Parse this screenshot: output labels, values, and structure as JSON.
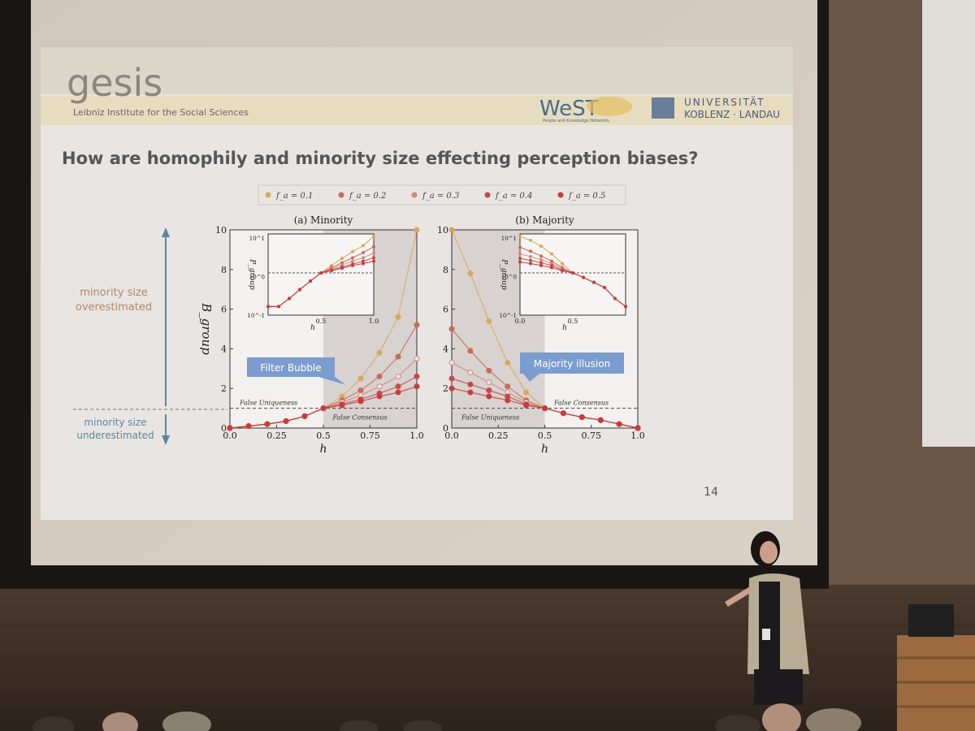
{
  "slide": {
    "logo_left": "gesis",
    "institute": "Leibniz Institute for the Social Sciences",
    "logo_west": "WeST",
    "west_sub": "People and Knowledge Networks",
    "univ_line1": "UNIVERSITÄT",
    "univ_line2": "KOBLENZ · LANDAU",
    "title": "How are homophily and minority size effecting perception biases?",
    "page_number": "14",
    "annot_over_1": "minority size",
    "annot_over_2": "overestimated",
    "annot_under_1": "minority size",
    "annot_under_2": "underestimated",
    "callout_left": "Filter Bubble",
    "callout_right": "Majority illusion",
    "colors": {
      "slide_bg": "#e7e4e1",
      "header_band": "#dcd3b8",
      "callout": "#7b9ccf",
      "arrow": "#5c86a0",
      "shade": "#d8d2d0"
    }
  },
  "legend": [
    {
      "label": "f_a = 0.1",
      "color": "#d9a85e"
    },
    {
      "label": "f_a = 0.2",
      "color": "#c96b5a"
    },
    {
      "label": "f_a = 0.3",
      "color": "#d08b80"
    },
    {
      "label": "f_a = 0.4",
      "color": "#c24b48"
    },
    {
      "label": "f_a = 0.5",
      "color": "#c83c3a"
    }
  ],
  "chart_data": [
    {
      "type": "line",
      "title": "(a) Minority",
      "xlabel": "h",
      "ylabel": "B_group",
      "xlim": [
        0,
        1
      ],
      "ylim": [
        0,
        10
      ],
      "xticks": [
        "0.0",
        "0.25",
        "0.5",
        "0.75",
        "1.0"
      ],
      "yticks": [
        "0",
        "2",
        "4",
        "6",
        "8",
        "10"
      ],
      "ref_line_label_above": "False Uniqueness",
      "ref_line_label_below": "False Consensus",
      "x": [
        0.0,
        0.1,
        0.2,
        0.3,
        0.4,
        0.5,
        0.6,
        0.7,
        0.8,
        0.9,
        1.0
      ],
      "series": [
        {
          "name": "f_a = 0.1",
          "values": [
            0.0,
            0.1,
            0.2,
            0.35,
            0.6,
            1.0,
            1.6,
            2.5,
            3.8,
            5.6,
            10.0
          ]
        },
        {
          "name": "f_a = 0.2",
          "values": [
            0.0,
            0.1,
            0.2,
            0.35,
            0.6,
            1.0,
            1.4,
            1.9,
            2.6,
            3.6,
            5.2
          ]
        },
        {
          "name": "f_a = 0.3",
          "values": [
            0.0,
            0.1,
            0.2,
            0.35,
            0.6,
            1.0,
            1.3,
            1.65,
            2.1,
            2.6,
            3.5
          ]
        },
        {
          "name": "f_a = 0.4",
          "values": [
            0.0,
            0.1,
            0.2,
            0.35,
            0.6,
            1.0,
            1.2,
            1.45,
            1.75,
            2.1,
            2.6
          ]
        },
        {
          "name": "f_a = 0.5",
          "values": [
            0.0,
            0.1,
            0.2,
            0.35,
            0.6,
            1.0,
            1.15,
            1.35,
            1.6,
            1.8,
            2.1
          ]
        }
      ],
      "inset": {
        "ylabel": "P_group",
        "xlabel": "h",
        "yticks": [
          "10^-1",
          "10^0",
          "10^1"
        ],
        "xticks": [
          "0.5",
          "1.0"
        ]
      }
    },
    {
      "type": "line",
      "title": "(b) Majority",
      "xlabel": "h",
      "ylim": [
        0,
        10
      ],
      "xlim": [
        0,
        1
      ],
      "xticks": [
        "0.0",
        "0.25",
        "0.5",
        "0.75",
        "1.0"
      ],
      "yticks": [
        "0",
        "2",
        "4",
        "6",
        "8",
        "10"
      ],
      "ref_line_label_above": "False Consensus",
      "ref_line_label_below": "False Uniqueness",
      "x": [
        0.0,
        0.1,
        0.2,
        0.3,
        0.4,
        0.5,
        0.6,
        0.7,
        0.8,
        0.9,
        1.0
      ],
      "series": [
        {
          "name": "f_a = 0.1",
          "values": [
            10.0,
            7.8,
            5.4,
            3.3,
            1.8,
            1.0,
            0.75,
            0.55,
            0.4,
            0.2,
            0.0
          ]
        },
        {
          "name": "f_a = 0.2",
          "values": [
            5.0,
            3.9,
            2.9,
            2.1,
            1.4,
            1.0,
            0.75,
            0.55,
            0.4,
            0.2,
            0.0
          ]
        },
        {
          "name": "f_a = 0.3",
          "values": [
            3.3,
            2.8,
            2.3,
            1.8,
            1.3,
            1.0,
            0.75,
            0.55,
            0.4,
            0.2,
            0.0
          ]
        },
        {
          "name": "f_a = 0.4",
          "values": [
            2.5,
            2.2,
            1.9,
            1.6,
            1.2,
            1.0,
            0.75,
            0.55,
            0.4,
            0.2,
            0.0
          ]
        },
        {
          "name": "f_a = 0.5",
          "values": [
            2.0,
            1.8,
            1.6,
            1.4,
            1.15,
            1.0,
            0.75,
            0.55,
            0.4,
            0.2,
            0.0
          ]
        }
      ],
      "inset": {
        "ylabel": "P_group",
        "xlabel": "h",
        "yticks": [
          "10^-1",
          "10^0",
          "10^1"
        ],
        "xticks": [
          "0.0",
          "0.5"
        ]
      }
    }
  ]
}
